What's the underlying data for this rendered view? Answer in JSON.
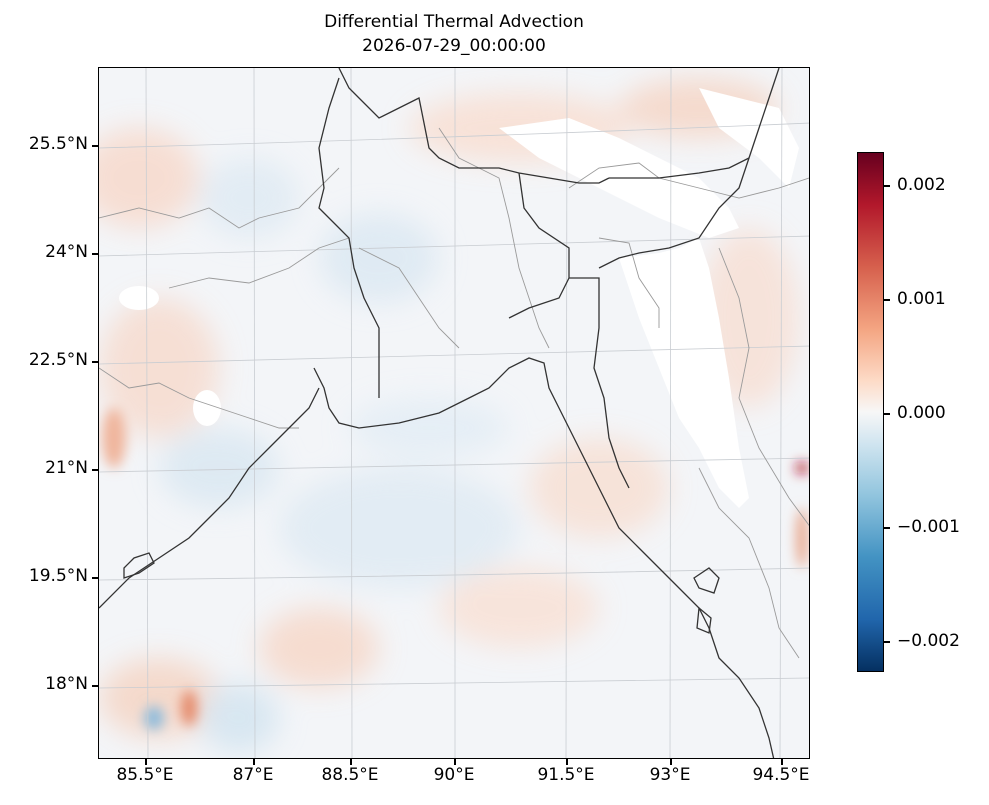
{
  "title": "Differential Thermal Advection",
  "subtitle": "2026-07-29_00:00:00",
  "map": {
    "lat_labels": [
      "25.5°N",
      "24°N",
      "22.5°N",
      "21°N",
      "19.5°N",
      "18°N"
    ],
    "lon_labels": [
      "85.5°E",
      "87°E",
      "88.5°E",
      "90°E",
      "91.5°E",
      "93°E",
      "94.5°E"
    ],
    "colorbar": {
      "labels": [
        "0.002",
        "0.001",
        "0.000",
        "−0.001",
        "−0.002"
      ],
      "colormap": "RdBu_r",
      "colors": [
        "#67001f",
        "#b2182b",
        "#d6604d",
        "#f4a582",
        "#fddbc7",
        "#f7f7f7",
        "#d1e5f0",
        "#92c5de",
        "#4393c3",
        "#2166ac",
        "#053061"
      ]
    }
  }
}
